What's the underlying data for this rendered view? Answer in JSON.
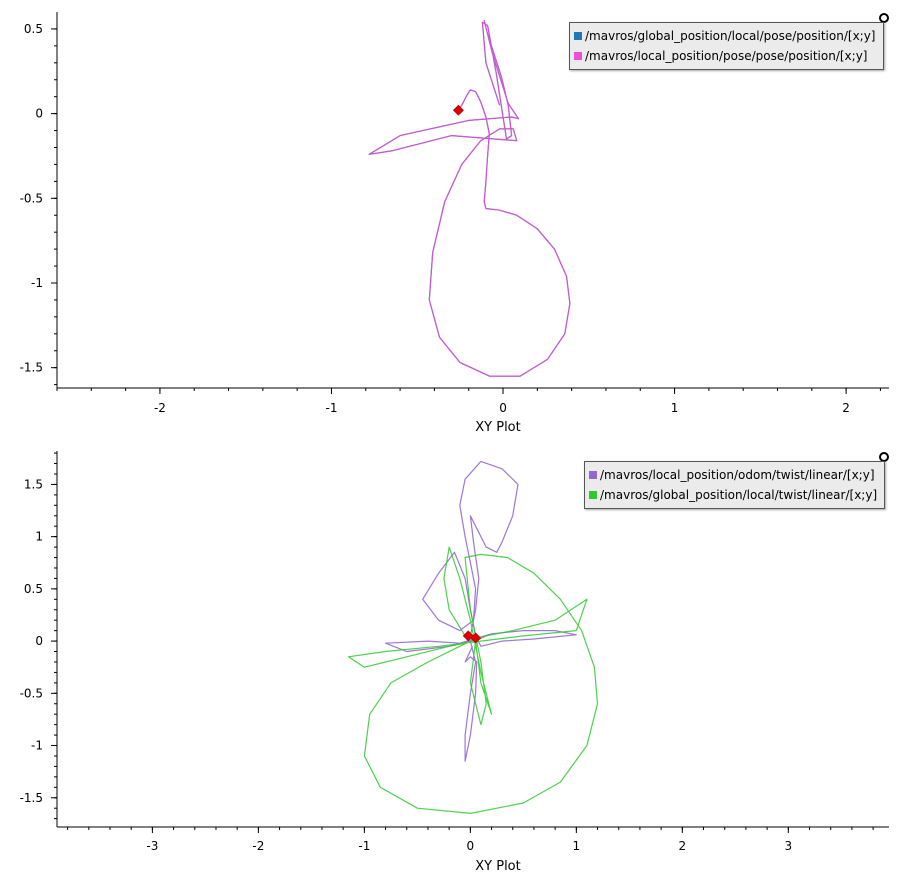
{
  "colors": {
    "background": "#ffffff",
    "axis": "#000000",
    "marker": "#e00000"
  },
  "chart_data": [
    {
      "type": "scatter",
      "xlabel": "XY Plot",
      "xlim": [
        -2.6,
        2.25
      ],
      "ylim": [
        -1.62,
        0.6
      ],
      "x_ticks": [
        -2,
        -1,
        0,
        1,
        2
      ],
      "y_ticks": [
        0.5,
        0,
        -0.5,
        -1,
        -1.5
      ],
      "x_tick_labels": [
        "-2",
        "-1",
        "0",
        "1",
        "2"
      ],
      "y_tick_labels": [
        "0.5",
        "0",
        "-0.5",
        "-1",
        "-1.5"
      ],
      "legend": "top-right",
      "series": [
        {
          "name": "/mavros/global_position/local/pose/position/[x;y]",
          "color": "#1f77b4",
          "points": [
            [
              -0.26,
              0.02
            ],
            [
              -0.24,
              0.05
            ],
            [
              -0.21,
              0.11
            ],
            [
              -0.19,
              0.14
            ],
            [
              -0.16,
              0.13
            ],
            [
              -0.13,
              0.07
            ],
            [
              -0.1,
              -0.02
            ],
            [
              -0.08,
              -0.12
            ],
            [
              -0.09,
              -0.25
            ],
            [
              -0.1,
              -0.4
            ],
            [
              -0.11,
              -0.52
            ],
            [
              -0.1,
              -0.56
            ],
            [
              -0.02,
              -0.57
            ],
            [
              0.08,
              -0.6
            ],
            [
              0.2,
              -0.68
            ],
            [
              0.3,
              -0.8
            ],
            [
              0.37,
              -0.96
            ],
            [
              0.39,
              -1.12
            ],
            [
              0.36,
              -1.3
            ],
            [
              0.26,
              -1.45
            ],
            [
              0.1,
              -1.55
            ],
            [
              -0.08,
              -1.55
            ],
            [
              -0.25,
              -1.47
            ],
            [
              -0.37,
              -1.32
            ],
            [
              -0.43,
              -1.1
            ],
            [
              -0.41,
              -0.82
            ],
            [
              -0.34,
              -0.52
            ],
            [
              -0.24,
              -0.3
            ],
            [
              -0.13,
              -0.16
            ],
            [
              -0.02,
              -0.09
            ],
            [
              0.06,
              -0.09
            ],
            [
              0.08,
              -0.16
            ],
            [
              -0.3,
              -0.13
            ],
            [
              -0.65,
              -0.22
            ],
            [
              -0.78,
              -0.24
            ],
            [
              -0.6,
              -0.13
            ],
            [
              -0.2,
              -0.04
            ],
            [
              0.05,
              -0.02
            ],
            [
              0.09,
              -0.03
            ],
            [
              0.03,
              0.06
            ],
            [
              -0.06,
              0.35
            ],
            [
              -0.11,
              0.55
            ],
            [
              -0.09,
              0.47
            ],
            [
              -0.01,
              0.22
            ],
            [
              0.03,
              0.05
            ],
            [
              0.05,
              -0.13
            ],
            [
              0.02,
              -0.15
            ],
            [
              -0.04,
              0.24
            ],
            [
              -0.09,
              0.52
            ],
            [
              -0.12,
              0.54
            ],
            [
              -0.1,
              0.3
            ],
            [
              -0.02,
              0.05
            ]
          ]
        },
        {
          "name": "/mavros/local_position/pose/pose/position/[x;y]",
          "color": "#e84ed6",
          "points": [
            [
              -0.26,
              0.02
            ],
            [
              -0.24,
              0.05
            ],
            [
              -0.21,
              0.11
            ],
            [
              -0.19,
              0.14
            ],
            [
              -0.16,
              0.13
            ],
            [
              -0.13,
              0.07
            ],
            [
              -0.1,
              -0.02
            ],
            [
              -0.08,
              -0.12
            ],
            [
              -0.09,
              -0.25
            ],
            [
              -0.1,
              -0.4
            ],
            [
              -0.11,
              -0.52
            ],
            [
              -0.1,
              -0.56
            ],
            [
              -0.02,
              -0.57
            ],
            [
              0.08,
              -0.6
            ],
            [
              0.2,
              -0.68
            ],
            [
              0.3,
              -0.8
            ],
            [
              0.37,
              -0.96
            ],
            [
              0.39,
              -1.12
            ],
            [
              0.36,
              -1.3
            ],
            [
              0.26,
              -1.45
            ],
            [
              0.1,
              -1.55
            ],
            [
              -0.08,
              -1.55
            ],
            [
              -0.25,
              -1.47
            ],
            [
              -0.37,
              -1.32
            ],
            [
              -0.43,
              -1.1
            ],
            [
              -0.41,
              -0.82
            ],
            [
              -0.34,
              -0.52
            ],
            [
              -0.24,
              -0.3
            ],
            [
              -0.13,
              -0.16
            ],
            [
              -0.02,
              -0.09
            ],
            [
              0.06,
              -0.09
            ],
            [
              0.08,
              -0.16
            ],
            [
              -0.3,
              -0.13
            ],
            [
              -0.65,
              -0.22
            ],
            [
              -0.78,
              -0.24
            ],
            [
              -0.6,
              -0.13
            ],
            [
              -0.2,
              -0.04
            ],
            [
              0.05,
              -0.02
            ],
            [
              0.09,
              -0.03
            ],
            [
              0.03,
              0.06
            ],
            [
              -0.06,
              0.35
            ],
            [
              -0.11,
              0.55
            ],
            [
              -0.09,
              0.47
            ],
            [
              -0.01,
              0.22
            ],
            [
              0.03,
              0.05
            ],
            [
              0.05,
              -0.13
            ],
            [
              0.02,
              -0.15
            ],
            [
              -0.04,
              0.24
            ],
            [
              -0.09,
              0.52
            ],
            [
              -0.12,
              0.54
            ],
            [
              -0.1,
              0.3
            ],
            [
              -0.02,
              0.05
            ]
          ]
        }
      ],
      "current_markers": [
        [
          -0.26,
          0.02
        ]
      ]
    },
    {
      "type": "scatter",
      "xlabel": "XY Plot",
      "xlim": [
        -3.9,
        3.95
      ],
      "ylim": [
        -1.78,
        1.82
      ],
      "x_ticks": [
        -3,
        -2,
        -1,
        0,
        1,
        2,
        3
      ],
      "y_ticks": [
        1.5,
        1,
        0.5,
        0,
        -0.5,
        -1,
        -1.5
      ],
      "x_tick_labels": [
        "-3",
        "-2",
        "-1",
        "0",
        "1",
        "2",
        "3"
      ],
      "y_tick_labels": [
        "1.5",
        "1",
        "0.5",
        "0",
        "-0.5",
        "-1",
        "-1.5"
      ],
      "legend": "top-right",
      "series": [
        {
          "name": "/mavros/local_position/odom/twist/linear/[x;y]",
          "color": "#9467d0",
          "points": [
            [
              0.0,
              0.05
            ],
            [
              0.05,
              0.3
            ],
            [
              0.08,
              0.6
            ],
            [
              0.03,
              0.95
            ],
            [
              0.0,
              1.2
            ],
            [
              0.05,
              1.1
            ],
            [
              0.15,
              0.9
            ],
            [
              0.25,
              0.85
            ],
            [
              0.3,
              0.95
            ],
            [
              0.4,
              1.2
            ],
            [
              0.45,
              1.5
            ],
            [
              0.3,
              1.65
            ],
            [
              0.1,
              1.72
            ],
            [
              -0.05,
              1.55
            ],
            [
              -0.1,
              1.3
            ],
            [
              -0.05,
              1.0
            ],
            [
              0.0,
              0.75
            ],
            [
              0.05,
              0.5
            ],
            [
              0.03,
              0.2
            ],
            [
              -0.1,
              0.1
            ],
            [
              -0.3,
              0.2
            ],
            [
              -0.45,
              0.4
            ],
            [
              -0.3,
              0.65
            ],
            [
              -0.15,
              0.85
            ],
            [
              -0.05,
              0.6
            ],
            [
              0.0,
              0.3
            ],
            [
              0.05,
              0.05
            ],
            [
              0.1,
              -0.05
            ],
            [
              0.3,
              -0.0
            ],
            [
              0.6,
              0.02
            ],
            [
              1.0,
              0.06
            ],
            [
              0.8,
              0.1
            ],
            [
              0.5,
              0.1
            ],
            [
              0.2,
              0.07
            ],
            [
              -0.1,
              -0.02
            ],
            [
              -0.4,
              0.0
            ],
            [
              -0.8,
              -0.02
            ],
            [
              -0.6,
              -0.1
            ],
            [
              -0.2,
              -0.05
            ],
            [
              0.0,
              0.0
            ],
            [
              0.05,
              -0.2
            ],
            [
              0.0,
              -0.5
            ],
            [
              -0.05,
              -0.9
            ],
            [
              -0.05,
              -1.15
            ],
            [
              0.0,
              -0.9
            ],
            [
              0.05,
              -0.5
            ],
            [
              0.06,
              -0.2
            ],
            [
              0.0,
              -0.15
            ],
            [
              -0.05,
              -0.2
            ],
            [
              0.02,
              -0.05
            ]
          ]
        },
        {
          "name": "/mavros/global_position/local/twist/linear/[x;y]",
          "color": "#2ec92e",
          "points": [
            [
              -0.05,
              0.05
            ],
            [
              -0.2,
              0.3
            ],
            [
              -0.25,
              0.6
            ],
            [
              -0.2,
              0.9
            ],
            [
              -0.1,
              0.6
            ],
            [
              0.0,
              0.2
            ],
            [
              0.1,
              -0.3
            ],
            [
              0.2,
              -0.7
            ],
            [
              0.1,
              -0.4
            ],
            [
              0.05,
              0.0
            ],
            [
              0.15,
              0.05
            ],
            [
              0.4,
              0.1
            ],
            [
              0.8,
              0.2
            ],
            [
              1.1,
              0.4
            ],
            [
              1.0,
              0.1
            ],
            [
              0.5,
              0.05
            ],
            [
              0.1,
              0.0
            ],
            [
              -0.3,
              -0.05
            ],
            [
              -0.8,
              -0.1
            ],
            [
              -1.15,
              -0.15
            ],
            [
              -1.0,
              -0.25
            ],
            [
              -0.6,
              -0.15
            ],
            [
              -0.2,
              -0.05
            ],
            [
              0.05,
              0.0
            ],
            [
              0.0,
              -0.4
            ],
            [
              0.1,
              -0.8
            ],
            [
              0.15,
              -0.6
            ],
            [
              0.1,
              -0.2
            ],
            [
              0.0,
              0.3
            ],
            [
              -0.05,
              0.8
            ],
            [
              0.1,
              0.83
            ],
            [
              0.35,
              0.8
            ],
            [
              0.6,
              0.65
            ],
            [
              0.85,
              0.4
            ],
            [
              1.05,
              0.1
            ],
            [
              1.17,
              -0.25
            ],
            [
              1.2,
              -0.6
            ],
            [
              1.1,
              -1.0
            ],
            [
              0.85,
              -1.35
            ],
            [
              0.5,
              -1.55
            ],
            [
              0.0,
              -1.65
            ],
            [
              -0.5,
              -1.6
            ],
            [
              -0.85,
              -1.4
            ],
            [
              -1.0,
              -1.1
            ],
            [
              -0.95,
              -0.7
            ],
            [
              -0.75,
              -0.4
            ],
            [
              -0.4,
              -0.2
            ],
            [
              -0.1,
              -0.05
            ],
            [
              0.05,
              0.02
            ]
          ]
        }
      ],
      "current_markers": [
        [
          -0.02,
          0.05
        ],
        [
          0.05,
          0.03
        ]
      ]
    }
  ]
}
